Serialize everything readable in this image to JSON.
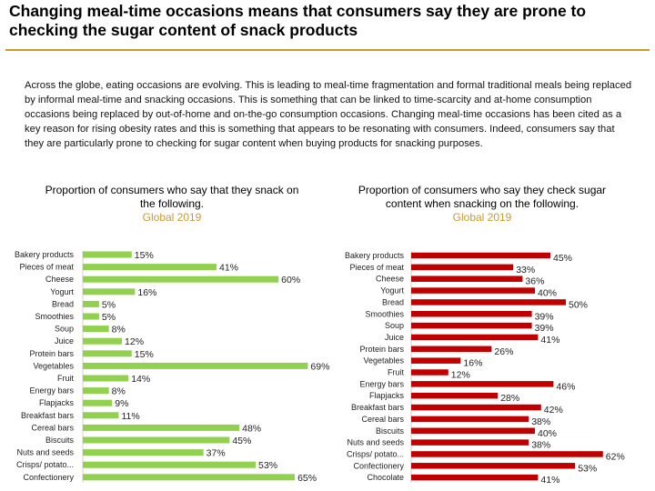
{
  "page": {
    "title": "Changing meal-time occasions means that consumers say they are prone to checking the sugar content of snack products",
    "intro": "Across the globe, eating occasions are evolving. This is leading to meal-time fragmentation and formal traditional meals being replaced by informal meal-time and snacking occasions. This is something that can be linked to time-scarcity and at-home consumption occasions being replaced by out-of-home and on-the-go consumption occasions. Changing meal-time occasions has been cited as a key reason for rising obesity rates and this is something that appears to be resonating with consumers. Indeed, consumers say that they are particularly prone to checking for sugar content when buying products for snacking purposes."
  },
  "chart_data": [
    {
      "type": "bar",
      "orientation": "horizontal",
      "title": "Proportion of consumers who say that they snack on the following.",
      "subtitle": "Global 2019",
      "color": "#92d050",
      "value_suffix": "%",
      "xlim": [
        0,
        70
      ],
      "grid": false,
      "categories": [
        "Bakery products",
        "Pieces of meat",
        "Cheese",
        "Yogurt",
        "Bread",
        "Smoothies",
        "Soup",
        "Juice",
        "Protein bars",
        "Vegetables",
        "Fruit",
        "Energy bars",
        "Flapjacks",
        "Breakfast bars",
        "Cereal bars",
        "Biscuits",
        "Nuts and seeds",
        "Crisps/ potato...",
        "Confectionery"
      ],
      "values": [
        15,
        41,
        60,
        16,
        5,
        5,
        8,
        12,
        15,
        69,
        14,
        8,
        9,
        11,
        48,
        45,
        37,
        53,
        65
      ]
    },
    {
      "type": "bar",
      "orientation": "horizontal",
      "title": "Proportion of consumers who say they check sugar content when snacking on the following.",
      "subtitle": "Global 2019",
      "color": "#c00000",
      "value_suffix": "%",
      "xlim": [
        0,
        70
      ],
      "grid": false,
      "categories": [
        "Bakery products",
        "Pieces of meat",
        "Cheese",
        "Yogurt",
        "Bread",
        "Smoothies",
        "Soup",
        "Juice",
        "Protein bars",
        "Vegetables",
        "Fruit",
        "Energy bars",
        "Flapjacks",
        "Breakfast bars",
        "Cereal bars",
        "Biscuits",
        "Nuts and seeds",
        "Crisps/ potato...",
        "Confectionery",
        "Chocolate"
      ],
      "values": [
        45,
        33,
        36,
        40,
        50,
        39,
        39,
        41,
        26,
        16,
        12,
        46,
        28,
        42,
        38,
        40,
        38,
        62,
        53,
        41
      ]
    }
  ]
}
